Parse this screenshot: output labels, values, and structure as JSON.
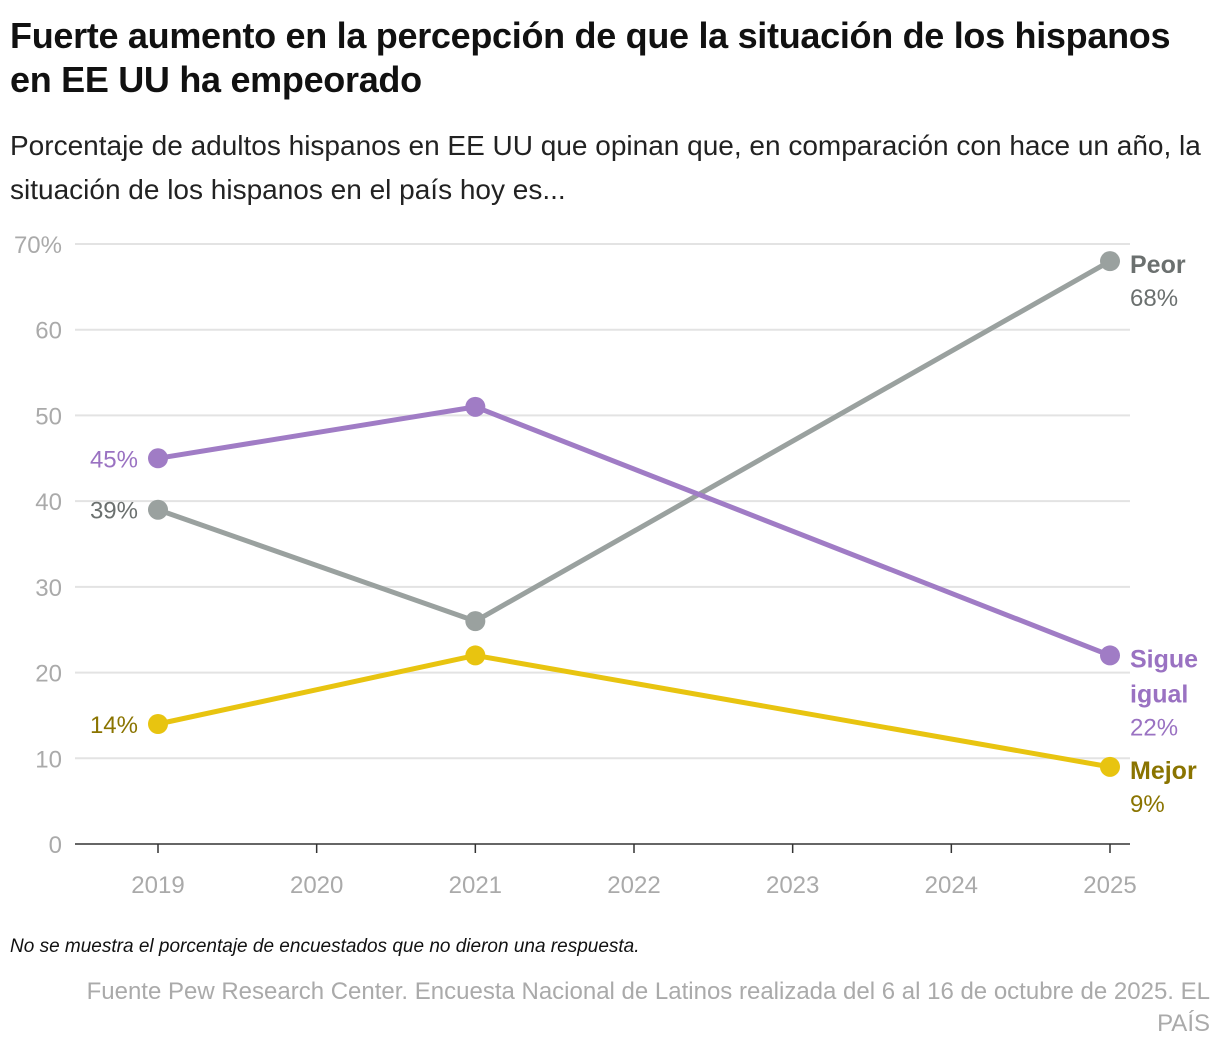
{
  "title": "Fuerte aumento en la percepción de que la situación de los hispanos en EE UU ha empeorado",
  "subtitle": "Porcentaje de adultos hispanos en EE UU que opinan que, en comparación con hace un año, la situación de los hispanos en el país hoy es...",
  "note": "No se muestra el porcentaje de encuestados que no dieron una respuesta.",
  "source": "Fuente Pew Research Center. Encuesta Nacional de Latinos realizada del 6 al 16 de octubre de 2025. EL PAÍS",
  "chart_data": {
    "type": "line",
    "x_ticks": [
      2019,
      2020,
      2021,
      2022,
      2023,
      2024,
      2025
    ],
    "y_ticks": [
      "0",
      "10",
      "20",
      "30",
      "40",
      "50",
      "60",
      "70%"
    ],
    "ylim": [
      0,
      70
    ],
    "xlim": [
      2019,
      2025
    ],
    "grid": "horizontal",
    "series": [
      {
        "name": "Peor",
        "name_lines": [
          "Peor"
        ],
        "color": "#9aa19f",
        "label_color": "#6b706f",
        "x": [
          2019,
          2021,
          2025
        ],
        "values": [
          39,
          26,
          68
        ],
        "start_label": "39%",
        "end_label": "68%"
      },
      {
        "name": "Sigue igual",
        "name_lines": [
          "Sigue",
          "igual"
        ],
        "color": "#a07cc5",
        "label_color": "#9a72c2",
        "x": [
          2019,
          2021,
          2025
        ],
        "values": [
          45,
          51,
          22
        ],
        "start_label": "45%",
        "end_label": "22%"
      },
      {
        "name": "Mejor",
        "name_lines": [
          "Mejor"
        ],
        "color": "#e8c410",
        "label_color": "#8a7400",
        "x": [
          2019,
          2021,
          2025
        ],
        "values": [
          14,
          22,
          9
        ],
        "start_label": "14%",
        "end_label": "9%"
      }
    ]
  }
}
